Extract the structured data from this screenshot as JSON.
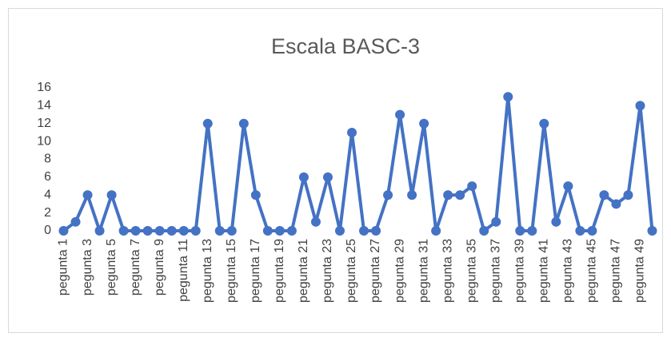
{
  "chart_data": {
    "type": "line",
    "title": "Escala BASC-3",
    "categories": [
      "pegunta 1",
      null,
      "pegunta 3",
      null,
      "pegunta 5",
      null,
      "pegunta 7",
      null,
      "pegunta 9",
      null,
      "pegunta 11",
      null,
      "pegunta 13",
      null,
      "pegunta 15",
      null,
      "pegunta 17",
      null,
      "pegunta 19",
      null,
      "pegunta 21",
      null,
      "pegunta 23",
      null,
      "pegunta 25",
      null,
      "pegunta 27",
      null,
      "pegunta 29",
      null,
      "pegunta 31",
      null,
      "pegunta 33",
      null,
      "pegunta 35",
      null,
      "pegunta 37",
      null,
      "pegunta 39",
      null,
      "pegunta 41",
      null,
      "pegunta 43",
      null,
      "pegunta 45",
      null,
      "pegunta 47",
      null,
      "pegunta 49",
      null
    ],
    "values": [
      0,
      1,
      4,
      0,
      4,
      0,
      0,
      0,
      0,
      0,
      0,
      0,
      12,
      0,
      0,
      12,
      4,
      0,
      0,
      0,
      6,
      1,
      6,
      0,
      11,
      0,
      0,
      4,
      13,
      4,
      12,
      0,
      4,
      4,
      5,
      0,
      1,
      15,
      0,
      0,
      12,
      1,
      5,
      0,
      0,
      4,
      3,
      4,
      14,
      0
    ],
    "color": "#4472c4",
    "ylim": [
      0,
      16
    ],
    "yticks": [
      0,
      2,
      4,
      6,
      8,
      10,
      12,
      14,
      16
    ],
    "grid": false
  }
}
